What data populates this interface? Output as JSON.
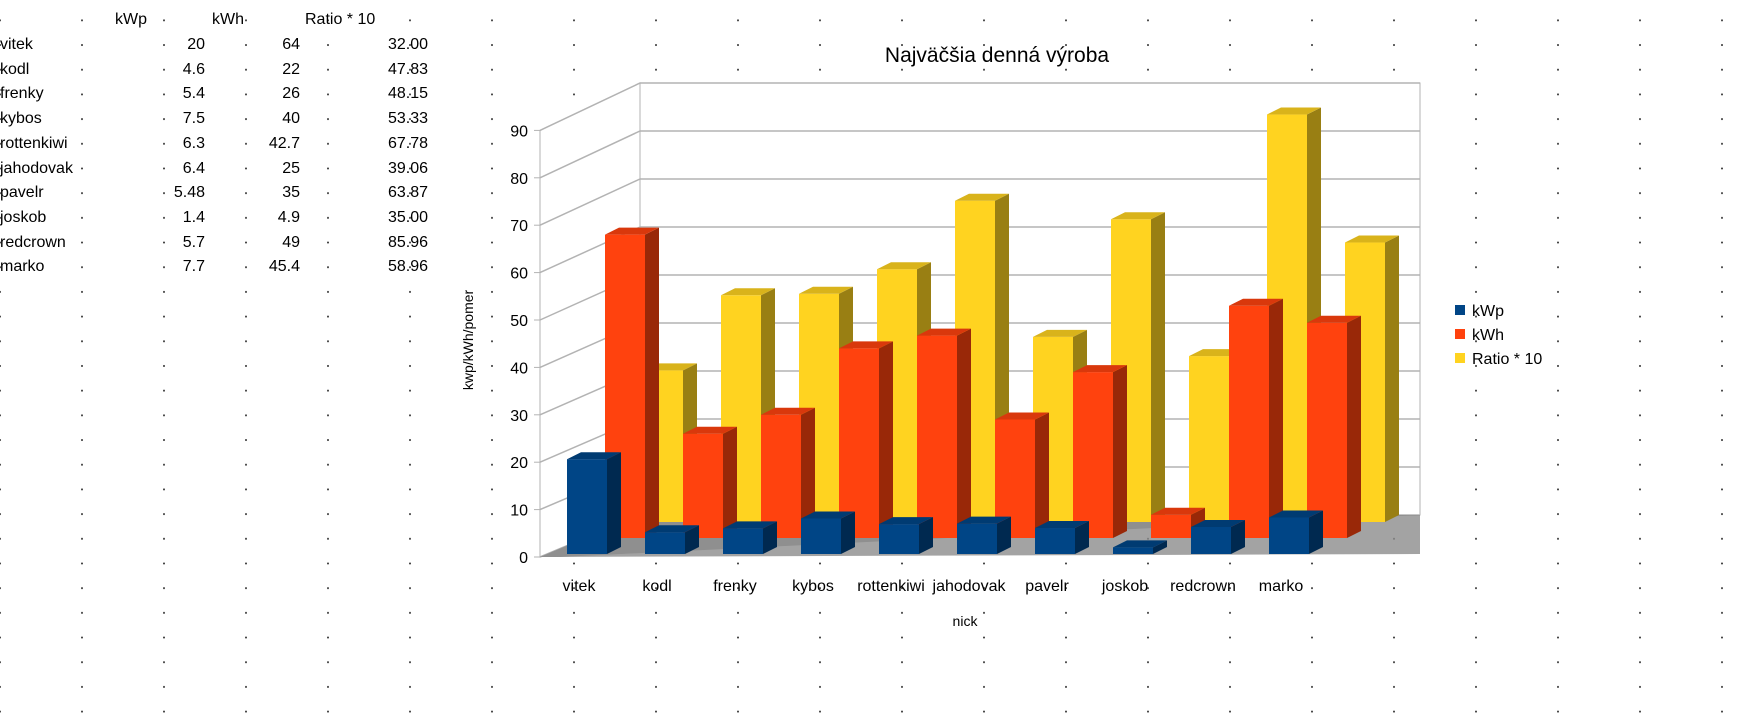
{
  "sheet": {
    "headers": [
      "kWp",
      "kWh",
      "Ratio * 10"
    ],
    "rows": [
      {
        "nick": "vitek",
        "kwp": "20",
        "kwh": "64",
        "ratio": "32.00"
      },
      {
        "nick": "kodl",
        "kwp": "4.6",
        "kwh": "22",
        "ratio": "47.83"
      },
      {
        "nick": "frenky",
        "kwp": "5.4",
        "kwh": "26",
        "ratio": "48.15"
      },
      {
        "nick": "kybos",
        "kwp": "7.5",
        "kwh": "40",
        "ratio": "53.33"
      },
      {
        "nick": "rottenkiwi",
        "kwp": "6.3",
        "kwh": "42.7",
        "ratio": "67.78"
      },
      {
        "nick": "jahodovak",
        "kwp": "6.4",
        "kwh": "25",
        "ratio": "39.06"
      },
      {
        "nick": "pavelr",
        "kwp": "5.48",
        "kwh": "35",
        "ratio": "63.87"
      },
      {
        "nick": "joskob",
        "kwp": "1.4",
        "kwh": "4.9",
        "ratio": "35.00"
      },
      {
        "nick": "redcrown",
        "kwp": "5.7",
        "kwh": "49",
        "ratio": "85.96"
      },
      {
        "nick": "marko",
        "kwp": "7.7",
        "kwh": "45.4",
        "ratio": "58.96"
      }
    ]
  },
  "chart_data": {
    "type": "bar",
    "title": "Najväčšia denná výroba",
    "xlabel": "nick",
    "ylabel": "kwp/kWh/pomer",
    "ylim": [
      0,
      90
    ],
    "yticks": [
      "0",
      "10",
      "20",
      "30",
      "40",
      "50",
      "60",
      "70",
      "80",
      "90"
    ],
    "categories": [
      "vitek",
      "kodl",
      "frenky",
      "kybos",
      "rottenkiwi",
      "jahodovak",
      "pavelr",
      "joskob",
      "redcrown",
      "marko"
    ],
    "series": [
      {
        "name": "kWp",
        "color": "#004586",
        "values": [
          20,
          4.6,
          5.4,
          7.5,
          6.3,
          6.4,
          5.48,
          1.4,
          5.7,
          7.7
        ]
      },
      {
        "name": "kWh",
        "color": "#ff420e",
        "values": [
          64,
          22,
          26,
          40,
          42.7,
          25,
          35,
          4.9,
          49,
          45.4
        ]
      },
      {
        "name": "Ratio * 10",
        "color": "#ffd320",
        "values": [
          32.0,
          47.83,
          48.15,
          53.33,
          67.78,
          39.06,
          63.87,
          35.0,
          85.96,
          58.96
        ]
      }
    ],
    "legend": "right",
    "grid": true,
    "style": "3d"
  }
}
